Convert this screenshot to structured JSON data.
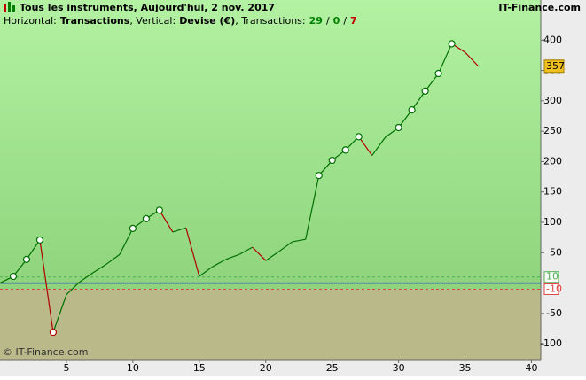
{
  "header": {
    "title": "Tous les instruments, Aujourd'hui, 2 nov. 2017",
    "site": "IT-Finance.com",
    "subtitle": {
      "parts": [
        "Horizontal:",
        "Transactions",
        ", Vertical:",
        "Devise (€)",
        ", Transactions:"
      ],
      "counts": [
        29,
        0,
        7
      ],
      "count_colors": [
        "#008000",
        "#008000",
        "#c00000"
      ],
      "separator": "/"
    }
  },
  "chart_data": {
    "type": "line",
    "x": [
      0,
      1,
      2,
      3,
      4,
      5,
      6,
      7,
      8,
      9,
      10,
      11,
      12,
      13,
      14,
      15,
      16,
      17,
      18,
      19,
      20,
      21,
      22,
      23,
      24,
      25,
      26,
      27,
      28,
      29,
      30,
      31,
      32,
      33,
      34,
      35,
      36
    ],
    "values": [
      0,
      11,
      39,
      71,
      -81,
      -19,
      2,
      17,
      31,
      47,
      90,
      106,
      120,
      84,
      91,
      11,
      27,
      39,
      47,
      59,
      37,
      52,
      68,
      72,
      177,
      202,
      219,
      241,
      210,
      240,
      256,
      285,
      316,
      345,
      394,
      380,
      357
    ],
    "xlim": [
      0,
      40.7
    ],
    "ylim": [
      -126,
      466
    ],
    "xticks": [
      5,
      10,
      15,
      20,
      25,
      30,
      35,
      40
    ],
    "yticks": [
      -100,
      -50,
      50,
      100,
      150,
      200,
      250,
      300,
      350,
      400
    ],
    "up_color": "#007000",
    "down_color": "#b00000",
    "levels": [
      {
        "value": 10,
        "color": "#4caf50"
      },
      {
        "value": -10,
        "color": "#e04040"
      }
    ],
    "last_value_color": "#f0c020",
    "watermark": "© IT-Finance.com"
  }
}
